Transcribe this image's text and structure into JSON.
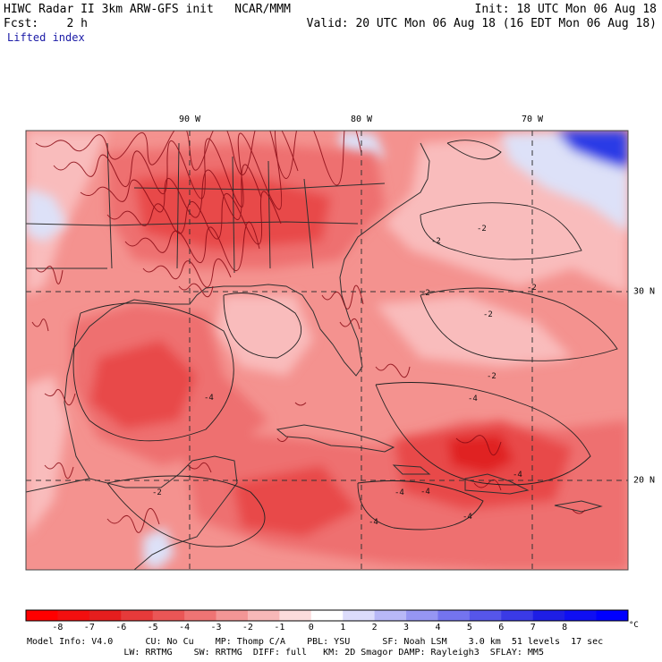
{
  "header": {
    "line1_left": "HIWC Radar II 3km ARW-GFS init   NCAR/MMM",
    "line2_left": "Fcst:    2 h",
    "field_name": "Lifted index",
    "line1_right": "Init: 18 UTC Mon 06 Aug 18",
    "line2_right": "Valid: 20 UTC Mon 06 Aug 18 (16 EDT Mon 06 Aug 18)"
  },
  "map": {
    "longitude_labels": [
      "90 W",
      "80 W",
      "70 W"
    ],
    "latitude_labels": [
      "30 N",
      "20 N"
    ],
    "contour_labels": [
      "-2",
      "-2",
      "-2",
      "-2",
      "-2",
      "-2",
      "-4",
      "-4",
      "-4",
      "-4",
      "-4",
      "-4",
      "-2",
      "-4"
    ],
    "colors": {
      "base": "#f4928f",
      "light": "#f9bcbc",
      "mid": "#ee6f6f",
      "strong": "#e84848",
      "intense": "#e02020",
      "positive_light": "#dde1f8",
      "positive_strong": "#2b3be6",
      "border_lines": "#303030",
      "convection": "#8a0a14"
    }
  },
  "colorbar": {
    "tick_labels": [
      "-8",
      "-7",
      "-6",
      "-5",
      "-4",
      "-3",
      "-2",
      "-1",
      "0",
      "1",
      "2",
      "3",
      "4",
      "5",
      "6",
      "7",
      "8"
    ],
    "unit": "°C",
    "bins": [
      "#ff0000",
      "#f30f0f",
      "#e51e1e",
      "#e63a3a",
      "#ea5656",
      "#ef7474",
      "#f39696",
      "#f7b8b8",
      "#fbdcdc",
      "#ffffff",
      "#dcdcfb",
      "#b8b8f7",
      "#9696f3",
      "#7474ef",
      "#5656ea",
      "#3a3ae6",
      "#1e1ee5",
      "#0f0ff3",
      "#0000ff"
    ]
  },
  "footer": {
    "line1": "Model Info: V4.0      CU: No Cu    MP: Thomp C/A    PBL: YSU      SF: Noah LSM    3.0 km  51 levels  17 sec",
    "line2": "                  LW: RRTMG    SW: RRTMG  DIFF: full   KM: 2D Smagor DAMP: Rayleigh3  SFLAY: MM5"
  }
}
